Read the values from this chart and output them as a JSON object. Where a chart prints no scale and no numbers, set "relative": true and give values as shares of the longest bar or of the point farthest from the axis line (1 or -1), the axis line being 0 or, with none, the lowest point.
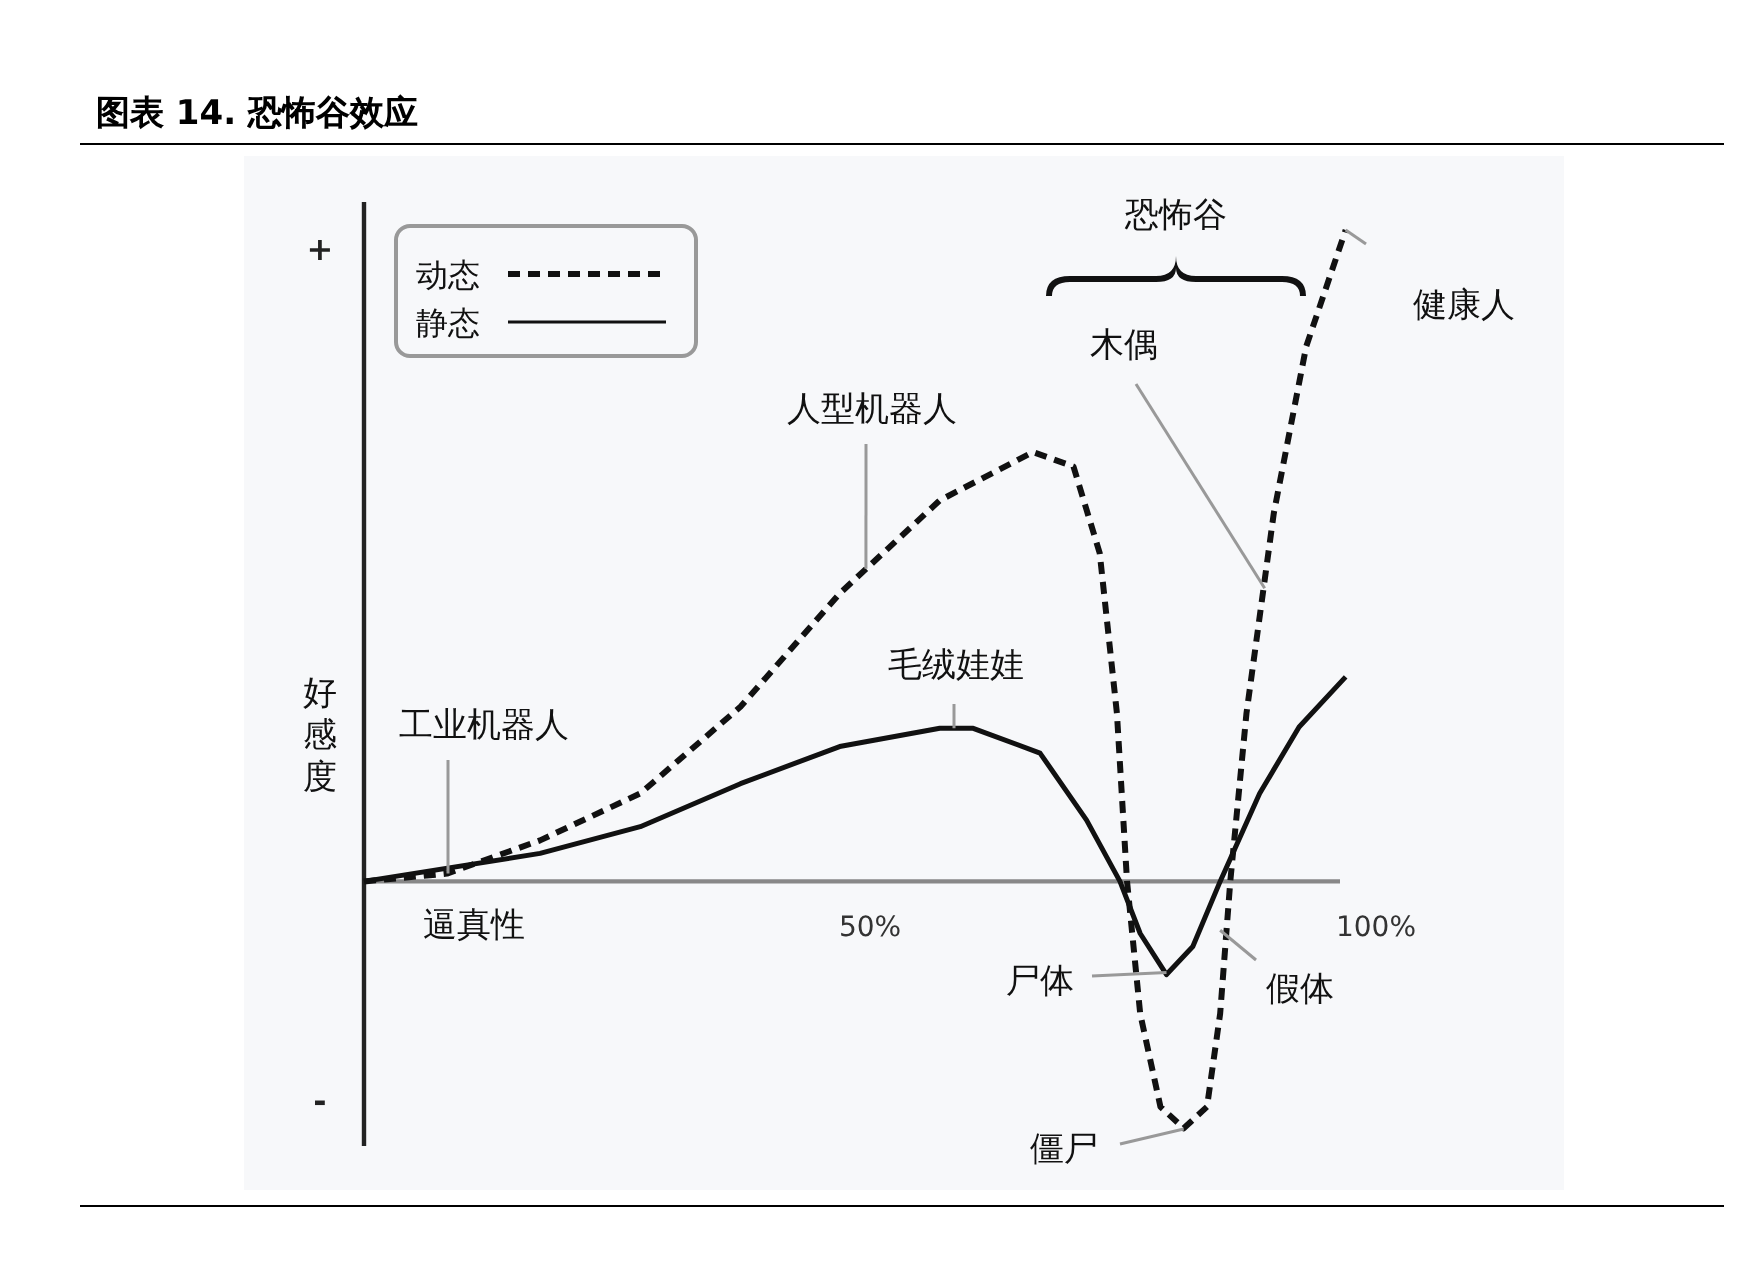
{
  "chart_data": {
    "type": "line",
    "title": "图表 14. 恐怖谷效应",
    "xlabel": "逼真性",
    "ylabel": "好感度",
    "relative": true,
    "legend": "top left",
    "xlim": [
      0,
      100
    ],
    "xticks": [
      {
        "value": 50,
        "label": "50%"
      },
      {
        "value": 100,
        "label": "100%"
      }
    ],
    "series": [
      {
        "name": "动态",
        "color": "#111111",
        "line_style": "dashed",
        "x": [
          0,
          8.2,
          17.4,
          27.3,
          37.2,
          47.0,
          56.9,
          66.1,
          70.1,
          72.7,
          74.4,
          75.4,
          76.7,
          78.7,
          81.0,
          83.3,
          84.6,
          85.6,
          87.2,
          89.9,
          93.1,
          97.0
        ],
        "values": [
          0,
          0.012,
          0.063,
          0.135,
          0.268,
          0.442,
          0.585,
          0.659,
          0.637,
          0.504,
          0.258,
          0,
          -0.203,
          -0.346,
          -0.379,
          -0.346,
          -0.203,
          0,
          0.258,
          0.565,
          0.821,
          1.0
        ]
      },
      {
        "name": "静态",
        "color": "#111111",
        "line_style": "solid",
        "x": [
          0,
          17.4,
          27.3,
          37.2,
          47.0,
          56.9,
          60.2,
          66.8,
          71.4,
          74.7,
          76.7,
          79.3,
          81.9,
          84.6,
          88.5,
          92.4,
          97.0
        ],
        "values": [
          0,
          0.043,
          0.084,
          0.15,
          0.207,
          0.235,
          0.235,
          0.197,
          0.094,
          0,
          -0.08,
          -0.143,
          -0.1,
          0,
          0.135,
          0.237,
          0.314
        ]
      }
    ],
    "annotations": [
      "+",
      "-",
      "恐怖谷",
      {
        "text": "工业机器人",
        "x": 8.3,
        "y": 0.012
      },
      {
        "text": "人型机器人",
        "x": 49.6,
        "y": 0.48
      },
      {
        "text": "毛绒娃娃",
        "x": 58.3,
        "y": 0.235
      },
      {
        "text": "木偶",
        "x": 89,
        "y": 0.45
      },
      {
        "text": "健康人",
        "x": 97,
        "y": 1.0
      },
      {
        "text": "尸体",
        "x": 79.3,
        "y": -0.14
      },
      {
        "text": "假体",
        "x": 84.6,
        "y": -0.075
      },
      {
        "text": "僵尸",
        "x": 81,
        "y": -0.38
      }
    ]
  }
}
